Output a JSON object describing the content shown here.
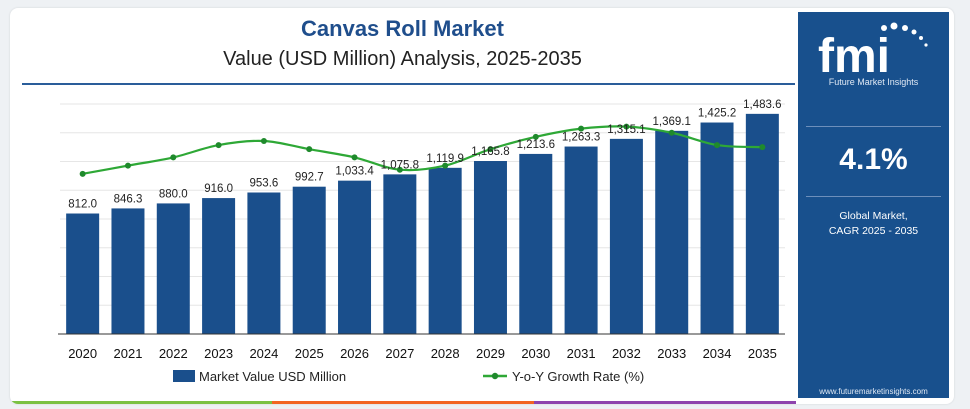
{
  "header": {
    "title": "Canvas Roll Market",
    "subtitle": "Value (USD Million) Analysis, 2025-2035"
  },
  "sidebar": {
    "logo_text": "fmi",
    "logo_subtitle": "Future Market Insights",
    "cagr_value": "4.1%",
    "cagr_label_line1": "Global Market,",
    "cagr_label_line2": "CAGR 2025 - 2035",
    "website": "www.futuremarketinsights.com"
  },
  "colors": {
    "bar": "#1a4f8c",
    "line": "#2ea836",
    "title": "#1f4e8c",
    "panel": "#18508d",
    "accent_green": "#7ac143",
    "accent_orange": "#f26522",
    "accent_purple": "#8e44ad",
    "accent_blue": "#1a4f8c"
  },
  "chart_data": {
    "type": "bar",
    "title": "Canvas Roll Market",
    "subtitle": "Value (USD Million) Analysis, 2025-2035",
    "categories": [
      "2020",
      "2021",
      "2022",
      "2023",
      "2024",
      "2025",
      "2026",
      "2027",
      "2028",
      "2029",
      "2030",
      "2031",
      "2032",
      "2033",
      "2034",
      "2035"
    ],
    "series": [
      {
        "name": "Market Value USD Million",
        "type": "bar",
        "values": [
          812.0,
          846.3,
          880.0,
          916.0,
          953.6,
          992.7,
          1033.4,
          1075.8,
          1119.9,
          1165.8,
          1213.6,
          1263.3,
          1315.1,
          1369.1,
          1425.2,
          1483.6
        ],
        "labels": [
          "812.0",
          "846.3",
          "880.0",
          "916.0",
          "953.6",
          "992.7",
          "1,033.4",
          "1,075.8",
          "1,119.9",
          "1,165.8",
          "1,213.6",
          "1,263.3",
          "1,315.1",
          "1,369.1",
          "1,425.2",
          "1,483.6"
        ]
      },
      {
        "name": "Y-o-Y Growth Rate (%)",
        "type": "line",
        "values": [
          3.9,
          4.1,
          4.3,
          4.6,
          4.7,
          4.5,
          4.3,
          4.0,
          4.1,
          4.5,
          4.8,
          5.0,
          5.05,
          4.9,
          4.6,
          4.55
        ]
      }
    ],
    "ylim": [
      0,
      1550
    ],
    "y2lim": [
      0,
      5.6
    ],
    "grid": true,
    "legend": "bottom"
  }
}
